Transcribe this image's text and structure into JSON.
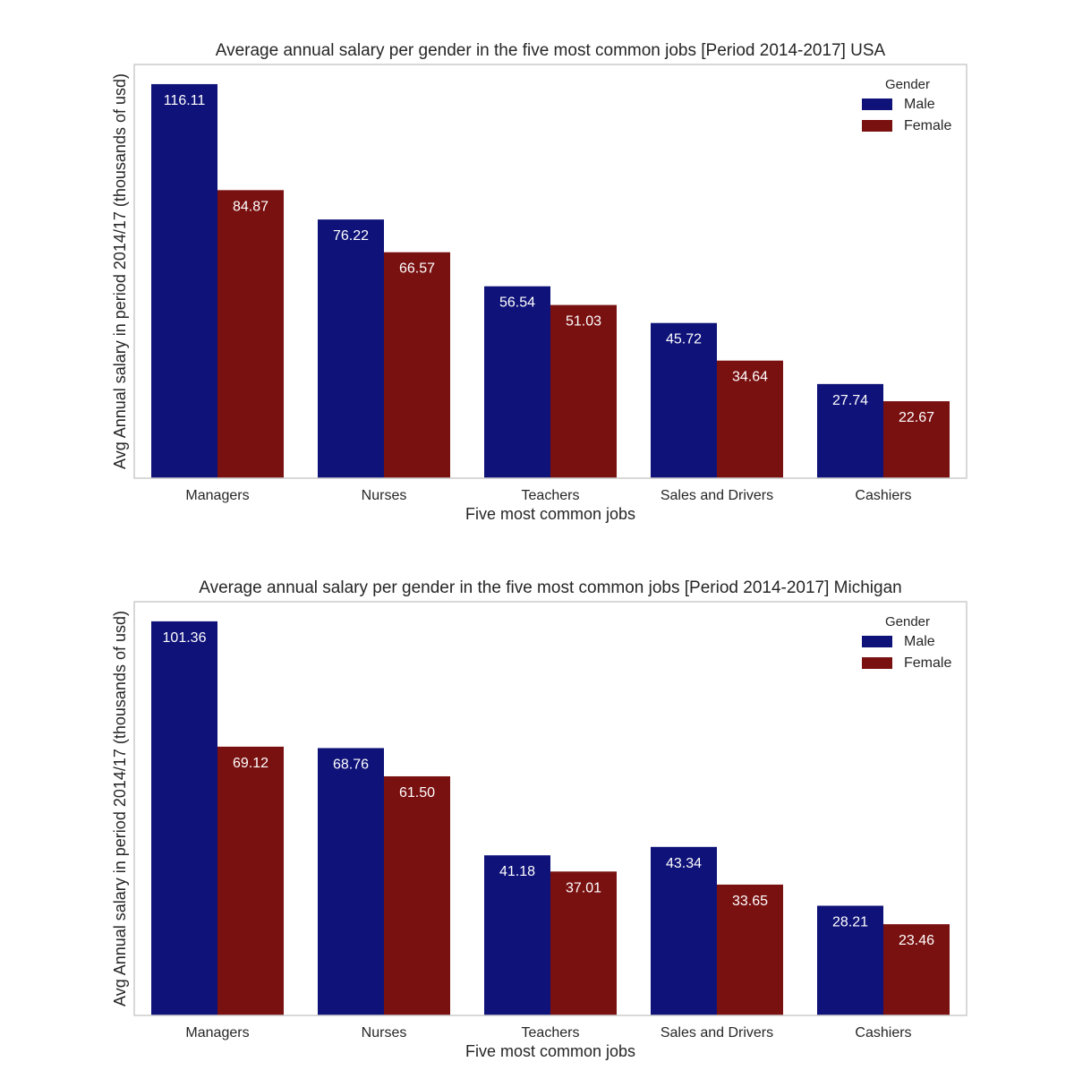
{
  "colors": {
    "male": "#0f1278",
    "female": "#7a1111",
    "frame": "#cccccc",
    "text": "#262626",
    "bar_label": "#ffffff"
  },
  "chart_data": [
    {
      "type": "bar",
      "title": "Average annual salary per gender in the five most common jobs [Period 2014-2017] USA",
      "xlabel": "Five most common jobs",
      "ylabel": "Avg Annual salary in period 2014/17 (thousands of usd)",
      "categories": [
        "Managers",
        "Nurses",
        "Teachers",
        "Sales and Drivers",
        "Cashiers"
      ],
      "series": [
        {
          "name": "Male",
          "values": [
            116.11,
            76.22,
            56.54,
            45.72,
            27.74
          ],
          "labels": [
            "116.11",
            "76.22",
            "56.54",
            "45.72",
            "27.74"
          ]
        },
        {
          "name": "Female",
          "values": [
            84.87,
            66.57,
            51.03,
            34.64,
            22.67
          ],
          "labels": [
            "84.87",
            "66.57",
            "51.03",
            "34.64",
            "22.67"
          ]
        }
      ],
      "legend": {
        "title": "Gender",
        "position": "top-right"
      },
      "ylim": [
        0,
        121.9
      ],
      "grid": false
    },
    {
      "type": "bar",
      "title": "Average annual salary per gender in the five most common jobs [Period 2014-2017] Michigan",
      "xlabel": "Five most common jobs",
      "ylabel": "Avg Annual salary in period 2014/17 (thousands of usd)",
      "categories": [
        "Managers",
        "Nurses",
        "Teachers",
        "Sales and Drivers",
        "Cashiers"
      ],
      "series": [
        {
          "name": "Male",
          "values": [
            101.36,
            68.76,
            41.18,
            43.34,
            28.21
          ],
          "labels": [
            "101.36",
            "68.76",
            "41.18",
            "43.34",
            "28.21"
          ]
        },
        {
          "name": "Female",
          "values": [
            69.12,
            61.5,
            37.01,
            33.65,
            23.46
          ],
          "labels": [
            "69.12",
            "61.50",
            "37.01",
            "33.65",
            "23.46"
          ]
        }
      ],
      "legend": {
        "title": "Gender",
        "position": "top-right"
      },
      "ylim": [
        0,
        106.4
      ],
      "grid": false
    }
  ]
}
